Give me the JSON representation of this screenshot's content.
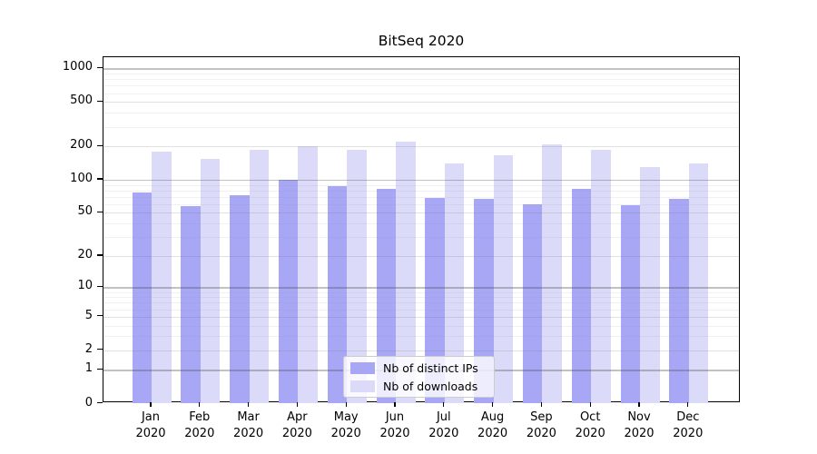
{
  "chart_data": {
    "type": "bar",
    "title": "BitSeq 2020",
    "categories": [
      "Jan",
      "Feb",
      "Mar",
      "Apr",
      "May",
      "Jun",
      "Jul",
      "Aug",
      "Sep",
      "Oct",
      "Nov",
      "Dec"
    ],
    "x_tick_second_line": "2020",
    "series": [
      {
        "name": "Nb of distinct IPs",
        "color": "#a7a7f6",
        "values": [
          77,
          58,
          72,
          100,
          88,
          83,
          68,
          67,
          60,
          82,
          59,
          67
        ]
      },
      {
        "name": "Nb of downloads",
        "color": "#dbdbf9",
        "values": [
          180,
          154,
          186,
          202,
          186,
          220,
          140,
          166,
          210,
          186,
          130,
          141
        ]
      }
    ],
    "y_axis": {
      "scale": "log1p",
      "tick_values": [
        0,
        1,
        2,
        5,
        10,
        20,
        50,
        100,
        200,
        500,
        1000
      ],
      "tick_labels": [
        "0",
        "1",
        "2",
        "5",
        "10",
        "20",
        "50",
        "100",
        "200",
        "500",
        "1000"
      ],
      "decade_values": [
        1,
        10,
        100,
        1000
      ],
      "minor_values": [
        3,
        4,
        6,
        7,
        8,
        9,
        30,
        40,
        60,
        70,
        80,
        90,
        300,
        400,
        600,
        700,
        800,
        900
      ],
      "ylim": [
        0,
        1260
      ]
    },
    "legend": {
      "position": "lower-center"
    },
    "grid": true
  }
}
